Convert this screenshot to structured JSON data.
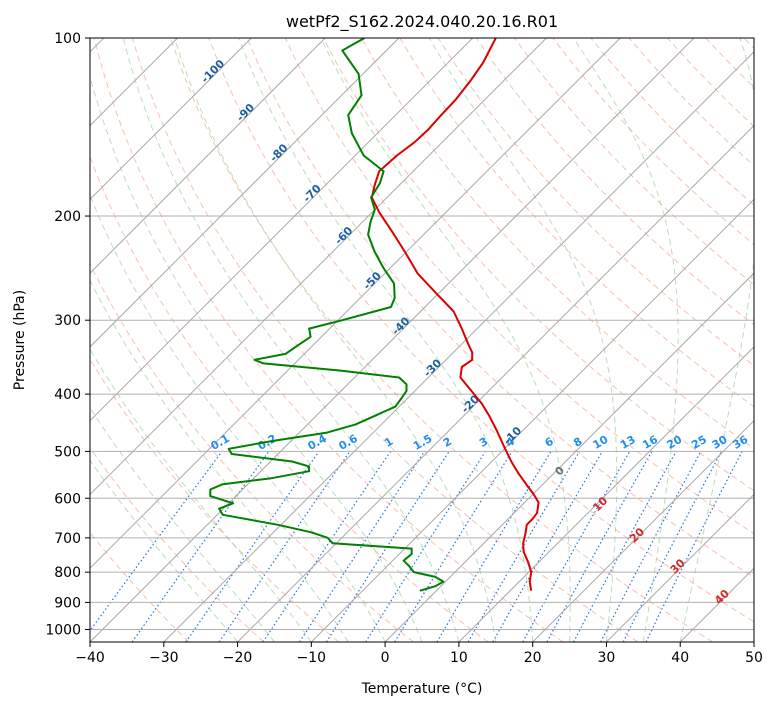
{
  "chart_data": {
    "type": "line",
    "title": "wetPf2_S162.2024.040.20.16.R01",
    "xlabel": "Temperature (°C)",
    "ylabel": "Pressure (hPa)",
    "xlim": [
      -40,
      50
    ],
    "ylim": [
      1050,
      100
    ],
    "y_scale": "log",
    "grid": true,
    "x_ticks": [
      "−40",
      "−30",
      "−20",
      "−10",
      "0",
      "10",
      "20",
      "30",
      "40",
      "50"
    ],
    "y_ticks": [
      {
        "p": 100,
        "label": "100"
      },
      {
        "p": 200,
        "label": "200"
      },
      {
        "p": 300,
        "label": "300"
      },
      {
        "p": 400,
        "label": "400"
      },
      {
        "p": 500,
        "label": "500"
      },
      {
        "p": 600,
        "label": "600"
      },
      {
        "p": 700,
        "label": "700"
      },
      {
        "p": 800,
        "label": "800"
      },
      {
        "p": 900,
        "label": "900"
      },
      {
        "p": 1000,
        "label": "1000"
      }
    ],
    "isotherm_labels": [
      {
        "t": -100,
        "text": "-100"
      },
      {
        "t": -90,
        "text": "-90"
      },
      {
        "t": -80,
        "text": "-80"
      },
      {
        "t": -70,
        "text": "-70"
      },
      {
        "t": -60,
        "text": "-60"
      },
      {
        "t": -50,
        "text": "-50"
      },
      {
        "t": -40,
        "text": "-40"
      },
      {
        "t": -30,
        "text": "-30"
      },
      {
        "t": -20,
        "text": "-20"
      },
      {
        "t": -10,
        "text": "-10"
      }
    ],
    "theta_labels": [
      {
        "t": 0,
        "text": "0"
      },
      {
        "t": 10,
        "text": "10"
      },
      {
        "t": 20,
        "text": "20"
      },
      {
        "t": 30,
        "text": "30"
      },
      {
        "t": 40,
        "text": "40"
      }
    ],
    "mixing_ratio_labels": [
      {
        "w": 0.1,
        "text": "0.1"
      },
      {
        "w": 0.2,
        "text": "0.2"
      },
      {
        "w": 0.4,
        "text": "0.4"
      },
      {
        "w": 0.6,
        "text": "0.6"
      },
      {
        "w": 1,
        "text": "1"
      },
      {
        "w": 1.5,
        "text": "1.5"
      },
      {
        "w": 2,
        "text": "2"
      },
      {
        "w": 3,
        "text": "3"
      },
      {
        "w": 4,
        "text": "4"
      },
      {
        "w": 6,
        "text": "6"
      },
      {
        "w": 8,
        "text": "8"
      },
      {
        "w": 10,
        "text": "10"
      },
      {
        "w": 13,
        "text": "13"
      },
      {
        "w": 16,
        "text": "16"
      },
      {
        "w": 20,
        "text": "20"
      },
      {
        "w": 25,
        "text": "25"
      },
      {
        "w": 30,
        "text": "30"
      },
      {
        "w": 36,
        "text": "36"
      }
    ],
    "series": [
      {
        "role": "temperature",
        "color": "#dd0000",
        "points": [
          [
            19.8,
            860
          ],
          [
            19.6,
            830
          ],
          [
            19.8,
            800
          ],
          [
            19.4,
            770
          ],
          [
            18.8,
            740
          ],
          [
            18.7,
            715
          ],
          [
            19.0,
            690
          ],
          [
            19.2,
            665
          ],
          [
            20.0,
            650
          ],
          [
            20.6,
            635
          ],
          [
            20.8,
            610
          ],
          [
            20.1,
            590
          ],
          [
            19.2,
            570
          ],
          [
            18.1,
            545
          ],
          [
            17.1,
            520
          ],
          [
            16.1,
            490
          ],
          [
            15.1,
            460
          ],
          [
            14.1,
            435
          ],
          [
            13.1,
            415
          ],
          [
            11.7,
            395
          ],
          [
            10.2,
            375
          ],
          [
            10.4,
            360
          ],
          [
            11.8,
            350
          ],
          [
            11.8,
            340
          ],
          [
            11.3,
            330
          ],
          [
            10.4,
            310
          ],
          [
            9.3,
            290
          ],
          [
            6.9,
            270
          ],
          [
            4.4,
            250
          ],
          [
            2.7,
            230
          ],
          [
            1.0,
            213
          ],
          [
            -0.8,
            197
          ],
          [
            -1.8,
            186
          ],
          [
            -1.4,
            177
          ],
          [
            -0.8,
            168
          ],
          [
            1.6,
            158
          ],
          [
            4.0,
            150
          ],
          [
            5.8,
            143
          ],
          [
            7.6,
            135
          ],
          [
            9.6,
            127
          ],
          [
            11.6,
            118
          ],
          [
            13.3,
            110
          ],
          [
            15.0,
            100
          ]
        ]
      },
      {
        "role": "dewpoint",
        "color": "#008000",
        "points": [
          [
            4.7,
            860
          ],
          [
            6.8,
            845
          ],
          [
            7.9,
            830
          ],
          [
            6.8,
            815
          ],
          [
            3.9,
            800
          ],
          [
            3.2,
            780
          ],
          [
            2.5,
            765
          ],
          [
            3.6,
            745
          ],
          [
            3.6,
            730
          ],
          [
            -7.1,
            715
          ],
          [
            -7.8,
            700
          ],
          [
            -10.0,
            685
          ],
          [
            -14.6,
            665
          ],
          [
            -22.0,
            640
          ],
          [
            -22.5,
            625
          ],
          [
            -20.6,
            612
          ],
          [
            -23.7,
            595
          ],
          [
            -23.7,
            580
          ],
          [
            -22.0,
            568
          ],
          [
            -15.4,
            555
          ],
          [
            -10.3,
            540
          ],
          [
            -10.3,
            530
          ],
          [
            -12.6,
            520
          ],
          [
            -20.8,
            505
          ],
          [
            -21.2,
            495
          ],
          [
            -15.2,
            480
          ],
          [
            -8.0,
            465
          ],
          [
            -4.0,
            450
          ],
          [
            1.4,
            420
          ],
          [
            2.3,
            405
          ],
          [
            2.9,
            395
          ],
          [
            2.9,
            385
          ],
          [
            1.9,
            375
          ],
          [
            -6.0,
            365
          ],
          [
            -16.5,
            355
          ],
          [
            -17.7,
            350
          ],
          [
            -13.5,
            342
          ],
          [
            -12.0,
            332
          ],
          [
            -10.1,
            320
          ],
          [
            -10.3,
            310
          ],
          [
            -5.8,
            300
          ],
          [
            0.8,
            285
          ],
          [
            1.3,
            275
          ],
          [
            1.2,
            260
          ],
          [
            -0.2,
            245
          ],
          [
            -1.4,
            230
          ],
          [
            -2.3,
            215
          ],
          [
            -2.0,
            205
          ],
          [
            -1.4,
            195
          ],
          [
            -1.9,
            186
          ],
          [
            -0.7,
            176
          ],
          [
            -0.2,
            168
          ],
          [
            -2.9,
            158
          ],
          [
            -4.5,
            145
          ],
          [
            -5.0,
            135
          ],
          [
            -3.2,
            125
          ],
          [
            -3.6,
            115
          ],
          [
            -5.8,
            105
          ],
          [
            -2.8,
            100
          ]
        ]
      }
    ]
  }
}
